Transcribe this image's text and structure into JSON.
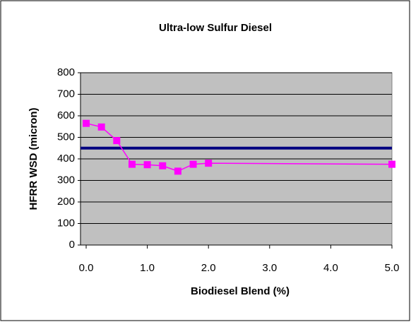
{
  "chart_data": {
    "type": "line",
    "title": "Ultra-low Sulfur Diesel",
    "xlabel": "Biodiesel Blend (%)",
    "ylabel": "HFRR WSD (micron)",
    "x": [
      0,
      0.25,
      0.5,
      0.75,
      1,
      1.25,
      1.5,
      1.75,
      2,
      5
    ],
    "series": [
      {
        "color": "#ff00ff",
        "values": [
          565,
          548,
          485,
          375,
          373,
          368,
          343,
          375,
          380,
          375
        ]
      }
    ],
    "reference_line": {
      "value": 450,
      "color": "#000080"
    },
    "xlim": [
      0,
      5
    ],
    "xticks": [
      {
        "value": 0,
        "label": "0.0"
      },
      {
        "value": 1,
        "label": "1.0"
      },
      {
        "value": 2,
        "label": "2.0"
      },
      {
        "value": 3,
        "label": "3.0"
      },
      {
        "value": 4,
        "label": "4.0"
      },
      {
        "value": 5,
        "label": "5.0"
      }
    ],
    "ylim": [
      0,
      800
    ],
    "yticks": [
      0,
      100,
      200,
      300,
      400,
      500,
      600,
      700,
      800
    ],
    "grid": true,
    "plot_background": "#c0c0c0"
  }
}
